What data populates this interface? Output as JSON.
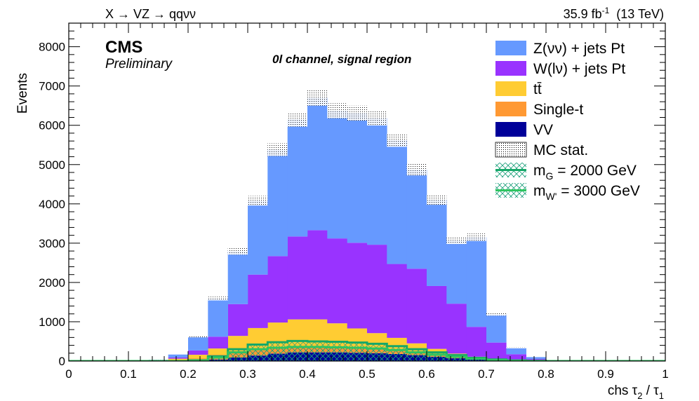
{
  "chart_data": {
    "type": "stacked-histogram",
    "title": "X → VZ → qqνν",
    "lumi_label": "35.9 fb",
    "lumi_exp": "-1",
    "energy_label": "(13 TeV)",
    "cms_label": "CMS",
    "preliminary_label": "Preliminary",
    "region_label": "0l channel, signal region",
    "xlabel": "chs τ",
    "xlabel_sub1": "2",
    "xlabel_mid": " / τ",
    "xlabel_sub2": "1",
    "ylabel": "Events",
    "xlim": [
      0,
      1
    ],
    "ylim": [
      0,
      8600
    ],
    "x_ticks": [
      {
        "v": 0,
        "label": "0"
      },
      {
        "v": 0.1,
        "label": "0.1"
      },
      {
        "v": 0.2,
        "label": "0.2"
      },
      {
        "v": 0.3,
        "label": "0.3"
      },
      {
        "v": 0.4,
        "label": "0.4"
      },
      {
        "v": 0.5,
        "label": "0.5"
      },
      {
        "v": 0.6,
        "label": "0.6"
      },
      {
        "v": 0.7,
        "label": "0.7"
      },
      {
        "v": 0.8,
        "label": "0.8"
      },
      {
        "v": 0.9,
        "label": "0.9"
      },
      {
        "v": 1,
        "label": "1"
      }
    ],
    "y_ticks": [
      {
        "v": 0,
        "label": "0"
      },
      {
        "v": 1000,
        "label": "1000"
      },
      {
        "v": 2000,
        "label": "2000"
      },
      {
        "v": 3000,
        "label": "3000"
      },
      {
        "v": 4000,
        "label": "4000"
      },
      {
        "v": 5000,
        "label": "5000"
      },
      {
        "v": 6000,
        "label": "6000"
      },
      {
        "v": 7000,
        "label": "7000"
      },
      {
        "v": 8000,
        "label": "8000"
      }
    ],
    "bin_edges": [
      0,
      0.0333,
      0.0667,
      0.1,
      0.1333,
      0.1667,
      0.2,
      0.2333,
      0.2667,
      0.3,
      0.3333,
      0.3667,
      0.4,
      0.4333,
      0.4667,
      0.5,
      0.5333,
      0.5667,
      0.6,
      0.6333,
      0.6667,
      0.7,
      0.7333,
      0.7667,
      0.8,
      0.8333,
      0.8667,
      0.9,
      0.9333,
      0.9667,
      1.0
    ],
    "series": [
      {
        "name": "VV",
        "color": "#000099",
        "values": [
          0,
          0,
          0,
          0,
          0,
          0,
          10,
          40,
          90,
          140,
          190,
          220,
          220,
          220,
          210,
          200,
          180,
          150,
          110,
          70,
          40,
          20,
          8,
          2,
          0,
          0,
          0,
          0,
          0,
          0
        ]
      },
      {
        "name": "Single-t",
        "color": "#ff9933",
        "values": [
          0,
          0,
          0,
          0,
          5,
          20,
          60,
          120,
          160,
          170,
          170,
          160,
          160,
          150,
          140,
          110,
          90,
          70,
          50,
          30,
          20,
          10,
          5,
          0,
          0,
          0,
          0,
          0,
          0,
          0
        ]
      },
      {
        "name": "tt̄",
        "color": "#ffcc33",
        "values": [
          0,
          0,
          0,
          0,
          10,
          40,
          90,
          160,
          390,
          530,
          620,
          680,
          680,
          590,
          480,
          400,
          320,
          230,
          150,
          90,
          50,
          20,
          10,
          2,
          0,
          0,
          0,
          0,
          0,
          0
        ]
      },
      {
        "name": "W(lν) + jets Pt",
        "color": "#9933ff",
        "values": [
          0,
          0,
          0,
          0,
          5,
          30,
          110,
          300,
          810,
          1360,
          1690,
          2110,
          2270,
          2160,
          2180,
          2250,
          1880,
          1900,
          1600,
          1270,
          760,
          420,
          150,
          50,
          10,
          0,
          0,
          0,
          0,
          0,
          0
        ]
      },
      {
        "name": "Z(νν) + jets Pt",
        "color": "#6699ff",
        "values": [
          0,
          0,
          0,
          0,
          10,
          80,
          350,
          970,
          1340,
          1880,
          2710,
          2980,
          3370,
          3250,
          3300,
          3220,
          3150,
          2520,
          2190,
          1610,
          2280,
          720,
          160,
          50,
          10,
          0,
          0,
          0,
          0,
          0,
          0
        ]
      }
    ],
    "mc_stat": {
      "name": "MC stat.",
      "rel_uncertainty": 0.03
    },
    "signals": [
      {
        "name": "m_G = 2000 GeV",
        "label_main": "m",
        "label_sub": "G",
        "label_rest": " = 2000 GeV",
        "color": "#16a868",
        "values": [
          0,
          0,
          0,
          0,
          0,
          0,
          20,
          120,
          300,
          420,
          480,
          510,
          500,
          490,
          470,
          440,
          380,
          300,
          220,
          150,
          80,
          40,
          15,
          5,
          0,
          0,
          0,
          0,
          0,
          0
        ]
      },
      {
        "name": "m_W' = 3000 GeV",
        "label_main": "m",
        "label_sub": "W'",
        "label_rest": " = 3000 GeV",
        "color": "#2ec460",
        "values": [
          0,
          0,
          0,
          0,
          0,
          0,
          15,
          90,
          220,
          300,
          340,
          360,
          360,
          350,
          340,
          320,
          280,
          220,
          160,
          110,
          60,
          30,
          10,
          3,
          0,
          0,
          0,
          0,
          0,
          0
        ]
      }
    ],
    "legend": [
      {
        "key": "Z(νν) + jets Pt",
        "swatch": "#6699ff",
        "kind": "fill"
      },
      {
        "key": "W(lν) + jets Pt",
        "swatch": "#9933ff",
        "kind": "fill"
      },
      {
        "key": "tt̄",
        "swatch": "#ffcc33",
        "kind": "fill"
      },
      {
        "key": "Single-t",
        "swatch": "#ff9933",
        "kind": "fill"
      },
      {
        "key": "VV",
        "swatch": "#000099",
        "kind": "fill"
      },
      {
        "key": "MC stat.",
        "swatch": "#ffffff",
        "kind": "hatch"
      },
      {
        "key": "m_G = 2000 GeV",
        "swatch": "#16a868",
        "kind": "signal"
      },
      {
        "key": "m_W' = 3000 GeV",
        "swatch": "#2ec460",
        "kind": "signal"
      }
    ],
    "legend_position": "top-right",
    "grid": false
  }
}
